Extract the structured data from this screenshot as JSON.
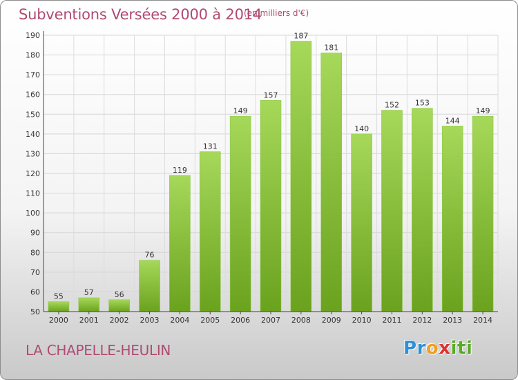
{
  "header": {
    "title": "Subventions Versées 2000 à 2014",
    "subtitle": "(en milliers d'€)"
  },
  "footer": {
    "commune": "LA CHAPELLE-HEULIN",
    "logo_letters": [
      {
        "char": "P",
        "color": "#2f8fd6"
      },
      {
        "char": "r",
        "color": "#2f8fd6"
      },
      {
        "char": "o",
        "color": "#f0a020"
      },
      {
        "char": "x",
        "color": "#e03030"
      },
      {
        "char": "i",
        "color": "#5aaa2a"
      },
      {
        "char": "t",
        "color": "#5aaa2a"
      },
      {
        "char": "i",
        "color": "#5aaa2a"
      }
    ]
  },
  "chart_data": {
    "type": "bar",
    "categories": [
      "2000",
      "2001",
      "2002",
      "2003",
      "2004",
      "2005",
      "2006",
      "2007",
      "2008",
      "2009",
      "2010",
      "2011",
      "2012",
      "2013",
      "2014"
    ],
    "values": [
      55,
      57,
      56,
      76,
      119,
      131,
      149,
      157,
      187,
      181,
      140,
      152,
      153,
      144,
      149
    ],
    "title": "Subventions Versées 2000 à 2014",
    "subtitle": "(en milliers d'€)",
    "ylim": [
      50,
      190
    ],
    "yticks": [
      50,
      60,
      70,
      80,
      90,
      100,
      110,
      120,
      130,
      140,
      150,
      160,
      170,
      180,
      190
    ],
    "grid": true,
    "bar_color_top": "#a6d85a",
    "bar_color_bottom": "#6aa21e",
    "text_color": "#b04a72"
  }
}
